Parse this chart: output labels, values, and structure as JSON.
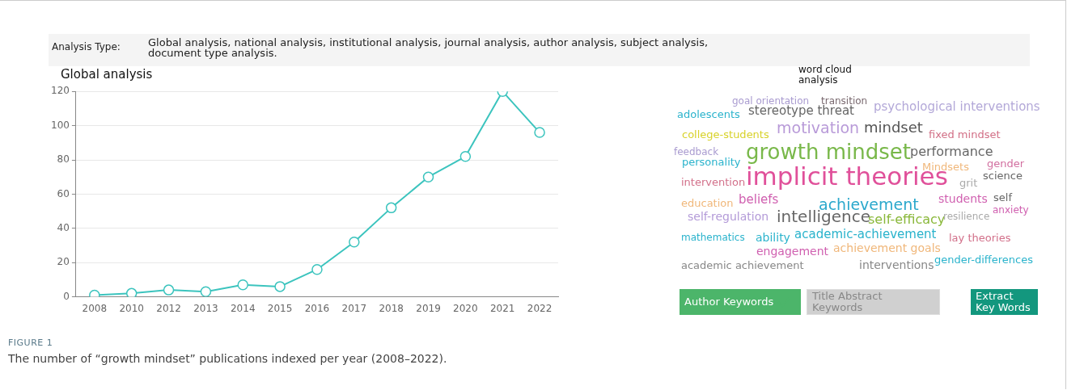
{
  "chart_data": [
    {
      "type": "line",
      "title": "Global analysis",
      "categories": [
        "2008",
        "2010",
        "2012",
        "2013",
        "2014",
        "2015",
        "2016",
        "2017",
        "2018",
        "2019",
        "2020",
        "2021",
        "2022"
      ],
      "series": [
        {
          "color": "#3cc4be",
          "values": [
            1,
            2,
            4,
            3,
            7,
            6,
            16,
            32,
            52,
            70,
            82,
            120,
            96
          ]
        }
      ],
      "ylim": [
        0,
        120
      ],
      "yticks": [
        0,
        20,
        40,
        60,
        80,
        100,
        120
      ],
      "grid": "y",
      "marker": "circle",
      "legend": false,
      "annotations": [
        "Analysis Type:",
        "Global analysis, national analysis, institutional analysis, journal analysis, author analysis, subject analysis, document type analysis.",
        "FIGURE 1",
        "The number of “growth mindset” publications indexed per year (2008–2022)."
      ]
    },
    {
      "type": "other",
      "title": "word cloud analysis",
      "annotations": [
        "goal orientation",
        "transition",
        "psychological interventions",
        "adolescents",
        "stereotype threat",
        "motivation",
        "mindset",
        "fixed mindset",
        "college-students",
        "feedback",
        "personality",
        "growth mindset",
        "performance",
        "Mindsets",
        "gender",
        "intervention",
        "implicit theories",
        "grit",
        "science",
        "education",
        "beliefs",
        "achievement",
        "students",
        "self",
        "anxiety",
        "self-regulation",
        "intelligence",
        "self-efficacy",
        "resilience",
        "mathematics",
        "ability",
        "academic-achievement",
        "lay theories",
        "achievement goals",
        "engagement",
        "academic achievement",
        "interventions",
        "gender-differences",
        "Author Keywords",
        "Title Abstract Keywords",
        "Extract Key Words"
      ]
    }
  ]
}
